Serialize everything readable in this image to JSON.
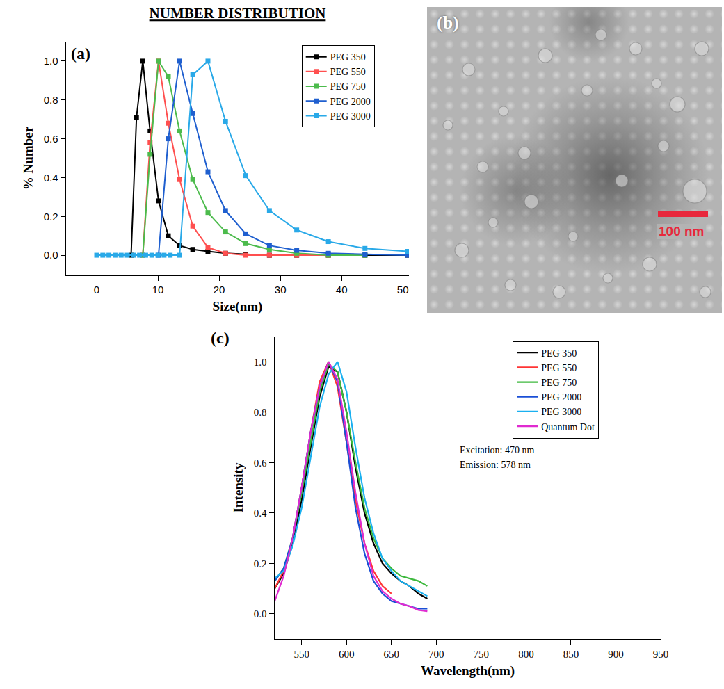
{
  "chart_data": [
    {
      "type": "line",
      "panel_label": "(a)",
      "title": "NUMBER DISTRIBUTION",
      "x_label": "Size(nm)",
      "y_label": "% Number",
      "xlim": [
        -5,
        51
      ],
      "ylim": [
        -0.1,
        1.1
      ],
      "xticks": [
        0,
        10,
        20,
        30,
        40,
        50
      ],
      "yticks": [
        {
          "value": 0,
          "label": "0.0"
        },
        0.2,
        0.4,
        0.6,
        0.8,
        {
          "value": 1,
          "label": "1.0"
        }
      ],
      "grid": false,
      "legend": "upper right",
      "series": [
        {
          "name": "PEG 350",
          "color": "#000000",
          "marker": "square",
          "line_style": "solid",
          "x": [
            5.62,
            6.5,
            7.53,
            8.72,
            10.1,
            11.7,
            13.54,
            15.69,
            18.17,
            21.04,
            24.36,
            28.21,
            32.67,
            37.84,
            43.82,
            50.75
          ],
          "values": [
            0,
            0.71,
            1.0,
            0.64,
            0.28,
            0.1,
            0.05,
            0.03,
            0.02,
            0.01,
            0.005,
            0,
            0,
            0,
            0,
            0
          ]
        },
        {
          "name": "PEG 550",
          "color": "#ff4f4f",
          "marker": "square",
          "line_style": "solid",
          "x": [
            7.53,
            8.72,
            10.1,
            11.7,
            13.54,
            15.69,
            18.17,
            21.04,
            24.36,
            28.21,
            32.67,
            37.84
          ],
          "values": [
            0,
            0.58,
            1.0,
            0.68,
            0.39,
            0.15,
            0.04,
            0.01,
            0,
            0,
            0,
            0
          ]
        },
        {
          "name": "PEG 750",
          "color": "#4cbb4c",
          "marker": "square",
          "line_style": "solid",
          "x": [
            7.53,
            8.72,
            10.1,
            11.7,
            13.54,
            15.69,
            18.17,
            21.04,
            24.36,
            28.21,
            32.67,
            37.84,
            43.82
          ],
          "values": [
            0,
            0.52,
            1.0,
            0.92,
            0.64,
            0.39,
            0.22,
            0.12,
            0.06,
            0.03,
            0.01,
            0,
            0
          ]
        },
        {
          "name": "PEG 2000",
          "color": "#1f5fcf",
          "marker": "square",
          "line_style": "solid",
          "x": [
            10.1,
            11.7,
            13.54,
            15.69,
            18.17,
            21.04,
            24.36,
            28.21,
            32.67,
            37.84,
            43.82,
            50.75
          ],
          "values": [
            0,
            0.6,
            1.0,
            0.73,
            0.43,
            0.23,
            0.11,
            0.05,
            0.025,
            0.01,
            0.005,
            0
          ]
        },
        {
          "name": "PEG 3000",
          "color": "#29a9e8",
          "marker": "square",
          "line_style": "solid",
          "x": [
            0,
            1,
            2,
            3,
            4,
            5,
            6,
            7,
            8,
            9,
            10,
            11,
            12,
            13.54,
            15.69,
            18.17,
            21.04,
            24.36,
            28.21,
            32.67,
            37.84,
            43.82,
            50.75
          ],
          "values": [
            0,
            0,
            0,
            0,
            0,
            0,
            0,
            0,
            0,
            0,
            0,
            0,
            0,
            0,
            0.93,
            1.0,
            0.69,
            0.41,
            0.23,
            0.13,
            0.07,
            0.035,
            0.02
          ]
        }
      ]
    },
    {
      "type": "line",
      "panel_label": "(c)",
      "x_label": "Wavelength(nm)",
      "y_label": "Intensity",
      "xlim": [
        520,
        950
      ],
      "ylim": [
        -0.1,
        1.1
      ],
      "xticks": [
        550,
        600,
        650,
        700,
        750,
        800,
        850,
        900,
        950
      ],
      "yticks": [
        {
          "value": 0,
          "label": "0.0"
        },
        0.2,
        0.4,
        0.6,
        0.8,
        {
          "value": 1,
          "label": "1.0"
        }
      ],
      "grid": false,
      "legend": "upper right",
      "annotations": [
        "Excitation: 470 nm",
        "Emission: 578 nm"
      ],
      "series": [
        {
          "name": "PEG 350",
          "color": "#000000",
          "line_style": "solid",
          "x": [
            520,
            530,
            540,
            550,
            560,
            570,
            580,
            590,
            600,
            610,
            620,
            630,
            640,
            650,
            660,
            670,
            680,
            690
          ],
          "values": [
            0.1,
            0.16,
            0.28,
            0.45,
            0.66,
            0.86,
            0.98,
            0.96,
            0.8,
            0.58,
            0.4,
            0.28,
            0.2,
            0.16,
            0.13,
            0.11,
            0.08,
            0.06
          ]
        },
        {
          "name": "PEG 550",
          "color": "#ff3434",
          "line_style": "solid",
          "x": [
            520,
            530,
            540,
            550,
            560,
            570,
            580,
            590,
            600,
            610,
            620,
            630,
            640,
            650
          ],
          "values": [
            0.1,
            0.17,
            0.3,
            0.5,
            0.72,
            0.92,
            1.0,
            0.9,
            0.68,
            0.45,
            0.28,
            0.17,
            0.11,
            0.08
          ]
        },
        {
          "name": "PEG 750",
          "color": "#3cb83c",
          "line_style": "solid",
          "x": [
            520,
            530,
            540,
            550,
            560,
            570,
            580,
            590,
            600,
            610,
            620,
            630,
            640,
            650,
            660,
            670,
            680,
            690
          ],
          "values": [
            0.13,
            0.18,
            0.3,
            0.48,
            0.68,
            0.88,
            0.99,
            0.96,
            0.8,
            0.6,
            0.42,
            0.3,
            0.22,
            0.18,
            0.15,
            0.14,
            0.13,
            0.11
          ]
        },
        {
          "name": "PEG 2000",
          "color": "#1a4fd6",
          "line_style": "solid",
          "x": [
            520,
            530,
            540,
            550,
            560,
            570,
            580,
            590,
            600,
            610,
            620,
            630,
            640,
            650,
            660,
            670,
            680,
            690
          ],
          "values": [
            0.13,
            0.18,
            0.3,
            0.5,
            0.72,
            0.9,
            1.0,
            0.92,
            0.68,
            0.42,
            0.24,
            0.13,
            0.08,
            0.05,
            0.04,
            0.03,
            0.02,
            0.02
          ]
        },
        {
          "name": "PEG 3000",
          "color": "#1ab0f0",
          "line_style": "solid",
          "x": [
            520,
            530,
            540,
            550,
            560,
            570,
            580,
            590,
            600,
            610,
            620,
            630,
            640,
            650,
            660,
            670,
            680,
            690
          ],
          "values": [
            0.14,
            0.17,
            0.27,
            0.42,
            0.62,
            0.82,
            0.95,
            1.0,
            0.88,
            0.66,
            0.46,
            0.32,
            0.22,
            0.17,
            0.13,
            0.11,
            0.09,
            0.07
          ]
        },
        {
          "name": "Quantum Dot",
          "color": "#e02ad0",
          "line_style": "solid",
          "x": [
            520,
            530,
            540,
            550,
            560,
            570,
            580,
            590,
            600,
            610,
            620,
            630,
            640,
            650,
            660,
            670,
            680,
            690
          ],
          "values": [
            0.05,
            0.15,
            0.3,
            0.5,
            0.72,
            0.9,
            1.0,
            0.93,
            0.72,
            0.48,
            0.28,
            0.15,
            0.09,
            0.06,
            0.04,
            0.03,
            0.015,
            0.01
          ]
        }
      ]
    }
  ],
  "image": {
    "panel_label": "(b)",
    "scale_bar": "100 nm"
  }
}
